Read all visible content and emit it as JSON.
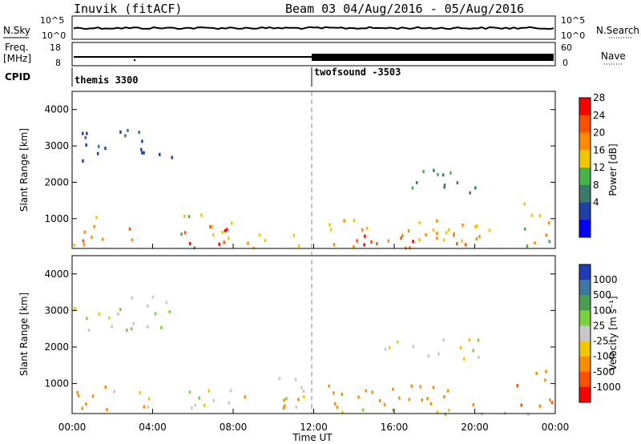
{
  "header": {
    "station": "Inuvik (fitACF)",
    "beam": "Beam 03 04/Aug/2016 - 05/Aug/2016"
  },
  "strip_nsky": {
    "left_label": "N.Sky",
    "ticks_left": [
      "10^5",
      "10^0"
    ],
    "right_label": "N.Search",
    "ticks_right": [
      "10^5",
      "10^0"
    ]
  },
  "strip_freq": {
    "left_label_1": "Freq.",
    "left_label_2": "[MHz]",
    "ticks_left": [
      "18",
      "8"
    ],
    "right_label": "Nave",
    "ticks_right": [
      "60",
      "0"
    ]
  },
  "cpid": {
    "label": "CPID",
    "mode_1": "themis 3300",
    "mode_2": "twofsound -3503"
  },
  "time_axis": {
    "labels": [
      "00:00",
      "04:00",
      "08:00",
      "12:00",
      "16:00",
      "20:00",
      "00:00"
    ],
    "title": "Time UT"
  },
  "range_axis": {
    "ticks": [
      "4000",
      "3000",
      "2000",
      "1000"
    ],
    "title": "Slant Range [km]"
  },
  "power_bar": {
    "title": "Power [dB]",
    "ticks": [
      "28",
      "24",
      "20",
      "16",
      "12",
      "8",
      "4"
    ],
    "colors": [
      "#0000ff",
      "#2040a8",
      "#3a7a6a",
      "#46b446",
      "#f0c800",
      "#ff8c00",
      "#ff5000",
      "#ff0000"
    ]
  },
  "velocity_bar": {
    "title": "Velocity [m s⁻¹]",
    "ticks": [
      "1000",
      "500",
      "100",
      "25",
      "-25",
      "-100",
      "-500",
      "-1000"
    ],
    "colors": [
      "#1e3cb4",
      "#3c78a0",
      "#46a050",
      "#78d23c",
      "#c8c8c8",
      "#f0c800",
      "#ff8c00",
      "#ff5000",
      "#ff0000"
    ]
  },
  "chart_data": [
    {
      "type": "heatmap",
      "title": "Power [dB]",
      "xlabel": "Time UT",
      "ylabel": "Slant Range [km]",
      "xlim": [
        "00:00",
        "00:00"
      ],
      "ylim": [
        180,
        4500
      ],
      "zlim": [
        0,
        30
      ],
      "blobs": [
        {
          "t0": 0.0,
          "t1": 5.0,
          "r0": 2500,
          "r1": 3500,
          "v": 8
        },
        {
          "t0": 0.0,
          "t1": 2.0,
          "r0": 200,
          "r1": 1100,
          "v": 20
        },
        {
          "t0": 0.0,
          "t1": 0.8,
          "r0": 200,
          "r1": 600,
          "v": 28
        },
        {
          "t0": 2.5,
          "t1": 3.5,
          "r0": 200,
          "r1": 800,
          "v": 22
        },
        {
          "t0": 5.3,
          "t1": 8.0,
          "r0": 200,
          "r1": 1200,
          "v": 16
        },
        {
          "t0": 5.5,
          "t1": 8.0,
          "r0": 200,
          "r1": 900,
          "v": 28
        },
        {
          "t0": 8.5,
          "t1": 11.5,
          "r0": 200,
          "r1": 700,
          "v": 20
        },
        {
          "t0": 12.5,
          "t1": 22.0,
          "r0": 200,
          "r1": 1000,
          "v": 20
        },
        {
          "t0": 14.0,
          "t1": 20.0,
          "r0": 300,
          "r1": 800,
          "v": 26
        },
        {
          "t0": 16.5,
          "t1": 20.5,
          "r0": 1600,
          "r1": 2400,
          "v": 12
        },
        {
          "t0": 22.0,
          "t1": 24.0,
          "r0": 200,
          "r1": 1500,
          "v": 18
        }
      ]
    },
    {
      "type": "heatmap",
      "title": "Velocity [m s⁻¹]",
      "xlabel": "Time UT",
      "ylabel": "Slant Range [km]",
      "xlim": [
        "00:00",
        "00:00"
      ],
      "ylim": [
        180,
        4500
      ],
      "zlim": [
        -1000,
        1000
      ],
      "blobs": [
        {
          "t0": 0.0,
          "t1": 5.0,
          "r0": 2500,
          "r1": 3500,
          "v": 0
        },
        {
          "t0": 0.0,
          "t1": 2.0,
          "r0": 200,
          "r1": 1100,
          "v": -300
        },
        {
          "t0": 2.0,
          "t1": 4.0,
          "r0": 200,
          "r1": 900,
          "v": -60
        },
        {
          "t0": 5.5,
          "t1": 8.0,
          "r0": 200,
          "r1": 1100,
          "v": 0
        },
        {
          "t0": 8.5,
          "t1": 11.5,
          "r0": 200,
          "r1": 700,
          "v": -150
        },
        {
          "t0": 10.0,
          "t1": 11.5,
          "r0": 200,
          "r1": 1200,
          "v": 0
        },
        {
          "t0": 12.5,
          "t1": 20.5,
          "r0": 300,
          "r1": 1000,
          "v": -300
        },
        {
          "t0": 15.5,
          "t1": 21.0,
          "r0": 1700,
          "r1": 2300,
          "v": 0
        },
        {
          "t0": 12.5,
          "t1": 24.0,
          "r0": 200,
          "r1": 400,
          "v": 0
        },
        {
          "t0": 22.0,
          "t1": 24.0,
          "r0": 400,
          "r1": 1500,
          "v": -500
        }
      ]
    }
  ]
}
